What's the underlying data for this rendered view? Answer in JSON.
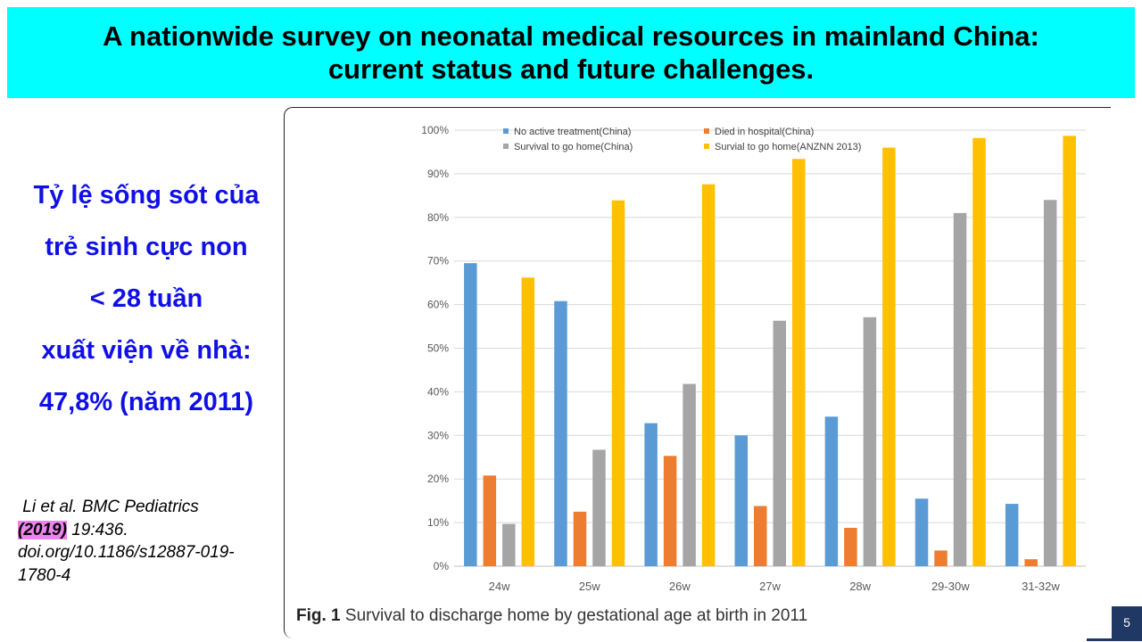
{
  "slide": {
    "title_lines": [
      "A nationwide survey on neonatal medical resources in mainland China:",
      "current status and future challenges."
    ],
    "side_text_lines": [
      "Tỷ lệ sống sót của",
      "trẻ sinh cực non",
      "< 28 tuần",
      "xuất viện về nhà:",
      "47,8% (năm 2011)"
    ],
    "citation": {
      "line1": "Li et al. BMC Pediatrics",
      "year": "(2019)",
      "line2_rest": " 19:436.",
      "line3": "doi.org/10.1186/s12887-019-",
      "line4": "1780-4"
    },
    "caption": {
      "label": "Fig. 1",
      "text": " Survival to discharge home by gestational age at birth in 2011"
    },
    "page_number": "5"
  },
  "chart_data": {
    "type": "bar",
    "categories": [
      "24w",
      "25w",
      "26w",
      "27w",
      "28w",
      "29-30w",
      "31-32w"
    ],
    "series": [
      {
        "name": "No active treatment(China)",
        "color": "#5b9bd5",
        "values": [
          69.5,
          60.8,
          32.8,
          30.0,
          34.3,
          15.5,
          14.3
        ]
      },
      {
        "name": "Died in hospital(China)",
        "color": "#ed7d31",
        "values": [
          20.8,
          12.5,
          25.3,
          13.8,
          8.8,
          3.6,
          1.6
        ]
      },
      {
        "name": "Survival to go home(China)",
        "color": "#a5a5a5",
        "values": [
          9.7,
          26.7,
          41.8,
          56.3,
          57.1,
          81.0,
          84.0
        ]
      },
      {
        "name": "Survial to go home(ANZNN 2013)",
        "color": "#ffc000",
        "values": [
          66.2,
          83.9,
          87.6,
          93.4,
          96.0,
          98.2,
          98.7
        ]
      }
    ],
    "ylim": [
      0,
      100
    ],
    "yticks": [
      "0%",
      "10%",
      "20%",
      "30%",
      "40%",
      "50%",
      "60%",
      "70%",
      "80%",
      "90%",
      "100%"
    ],
    "grid": true,
    "legend_position": "top"
  }
}
